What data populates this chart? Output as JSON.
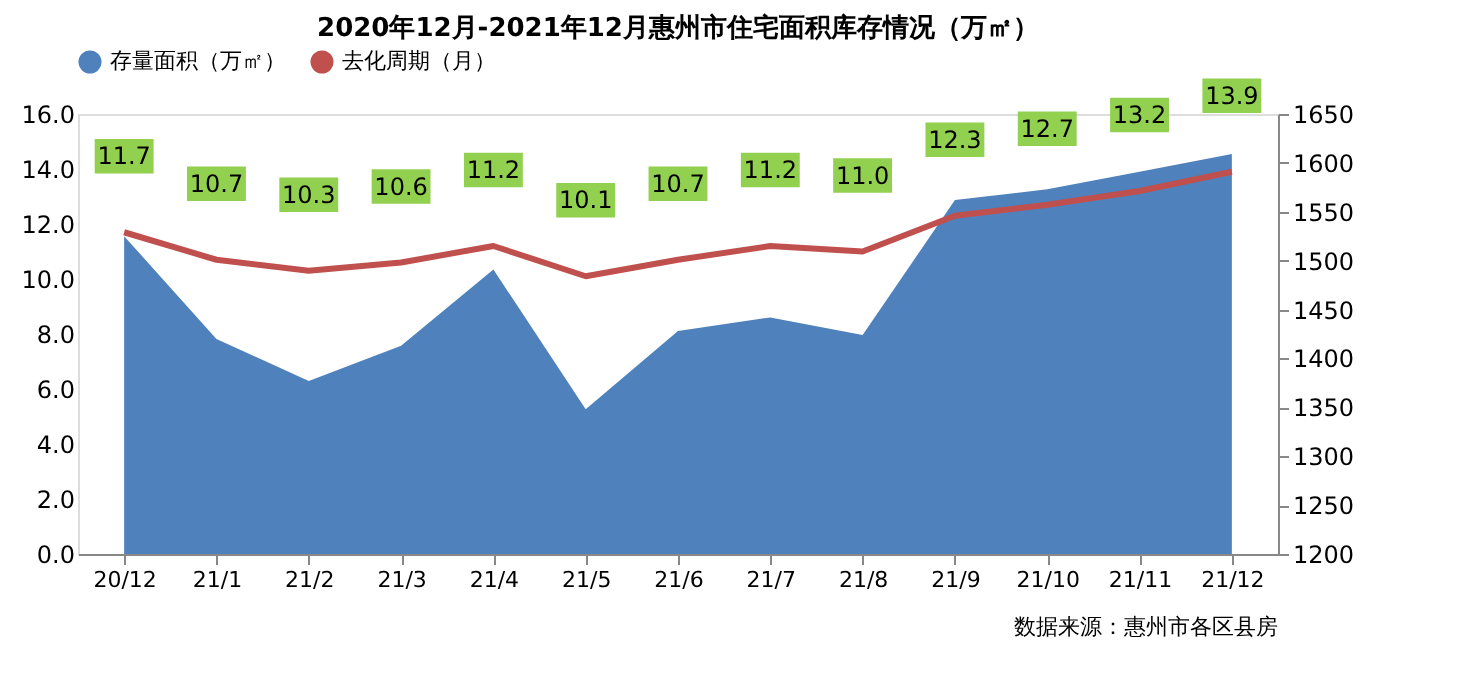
{
  "chart_data": {
    "type": "line",
    "title": "2020年12月-2021年12月惠州市住宅面积库存情况（万㎡）",
    "categories": [
      "20/12",
      "21/1",
      "21/2",
      "21/3",
      "21/4",
      "21/5",
      "21/6",
      "21/7",
      "21/8",
      "21/9",
      "21/10",
      "21/11",
      "21/12"
    ],
    "series": [
      {
        "name": "存量面积（万㎡）",
        "type": "area",
        "axis": "y2",
        "color": "#4f81bd",
        "values": [
          1525,
          1420,
          1377,
          1413,
          1491,
          1348,
          1428,
          1442,
          1424,
          1562,
          1573,
          1591,
          1609
        ]
      },
      {
        "name": "去化周期（月）",
        "color": "#c0504d",
        "values": [
          11.7,
          10.7,
          10.3,
          10.6,
          11.2,
          10.1,
          10.7,
          11.2,
          11.0,
          12.3,
          12.7,
          13.2,
          13.9
        ],
        "value_labels": [
          "11.7",
          "10.7",
          "10.3",
          "10.6",
          "11.2",
          "10.1",
          "10.7",
          "11.2",
          "11.0",
          "12.3",
          "12.7",
          "13.2",
          "13.9"
        ]
      }
    ],
    "ylim": [
      0,
      16
    ],
    "yticks": [
      {
        "value": 0,
        "label": "0.0"
      },
      {
        "value": 2,
        "label": "2.0"
      },
      {
        "value": 4,
        "label": "4.0"
      },
      {
        "value": 6,
        "label": "6.0"
      },
      {
        "value": 8,
        "label": "8.0"
      },
      {
        "value": 10,
        "label": "10.0"
      },
      {
        "value": 12,
        "label": "12.0"
      },
      {
        "value": 14,
        "label": "14.0"
      },
      {
        "value": 16,
        "label": "16.0"
      }
    ],
    "y2lim": [
      1200,
      1650
    ],
    "y2ticks": [
      1200,
      1250,
      1300,
      1350,
      1400,
      1450,
      1500,
      1550,
      1600,
      1650
    ],
    "legend": "top",
    "grid": false,
    "marker": "none",
    "annotations": [
      "数据来源：惠州市各区县房"
    ]
  }
}
